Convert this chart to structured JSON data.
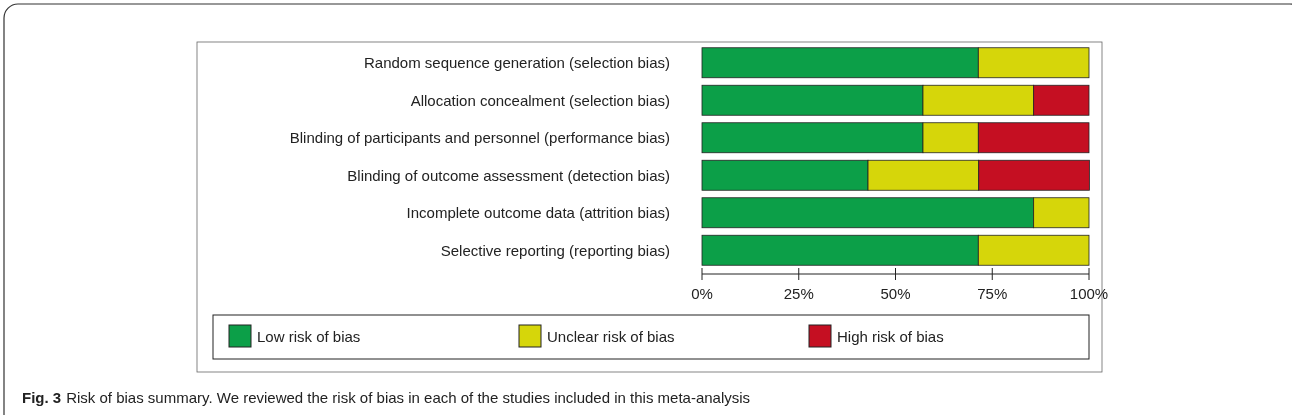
{
  "chart_data": {
    "type": "bar",
    "orientation": "horizontal",
    "stacked": true,
    "categories": [
      "Random sequence generation (selection bias)",
      "Allocation concealment (selection bias)",
      "Blinding of participants and personnel (performance bias)",
      "Blinding of outcome assessment (detection bias)",
      "Incomplete outcome data (attrition bias)",
      "Selective reporting (reporting bias)"
    ],
    "series": [
      {
        "name": "Low risk of bias",
        "color": "#0c9f48",
        "values": [
          71.4,
          57.1,
          57.1,
          42.9,
          85.7,
          71.4
        ]
      },
      {
        "name": "Unclear risk of bias",
        "color": "#d6d60a",
        "values": [
          28.6,
          28.6,
          14.3,
          28.6,
          14.3,
          28.6
        ]
      },
      {
        "name": "High risk of bias",
        "color": "#c50f22",
        "values": [
          0,
          14.3,
          28.6,
          28.6,
          0,
          0
        ]
      }
    ],
    "xlim": [
      0,
      100
    ],
    "xticks": [
      {
        "value": 0,
        "label": "0%"
      },
      {
        "value": 25,
        "label": "25%"
      },
      {
        "value": 50,
        "label": "50%"
      },
      {
        "value": 75,
        "label": "75%"
      },
      {
        "value": 100,
        "label": "100%"
      }
    ],
    "legend": "bottom",
    "annotations": [
      "Fig. 3",
      "Risk of bias summary. We reviewed the risk of bias in each of the studies included in this meta-analysis"
    ]
  }
}
